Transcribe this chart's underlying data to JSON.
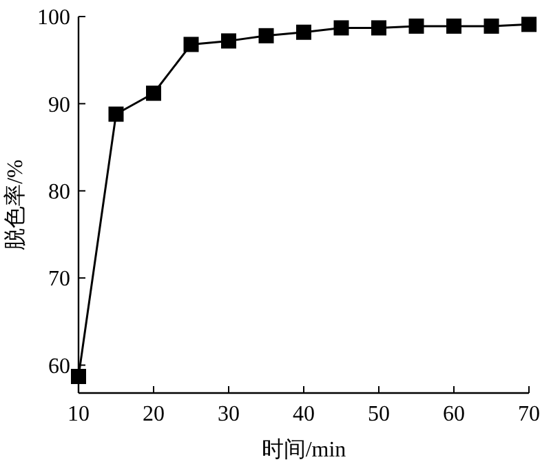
{
  "chart_data": {
    "type": "line",
    "xlabel": "时间/min",
    "ylabel": "脱色率/%",
    "x": [
      10,
      15,
      20,
      25,
      30,
      35,
      40,
      45,
      50,
      55,
      60,
      65,
      70
    ],
    "series": [
      {
        "color": "#000000",
        "values": [
          58.7,
          88.8,
          91.2,
          96.8,
          97.2,
          97.8,
          98.2,
          98.7,
          98.7,
          98.9,
          98.9,
          98.9,
          99.1
        ]
      }
    ],
    "xlim": [
      10,
      70
    ],
    "xticks": [
      10,
      20,
      30,
      40,
      50,
      60,
      70
    ],
    "ylim": [
      56.8,
      100
    ],
    "yticks": [
      60,
      70,
      80,
      90,
      100
    ],
    "marker": "square",
    "line_style": "solid",
    "grid": false
  }
}
